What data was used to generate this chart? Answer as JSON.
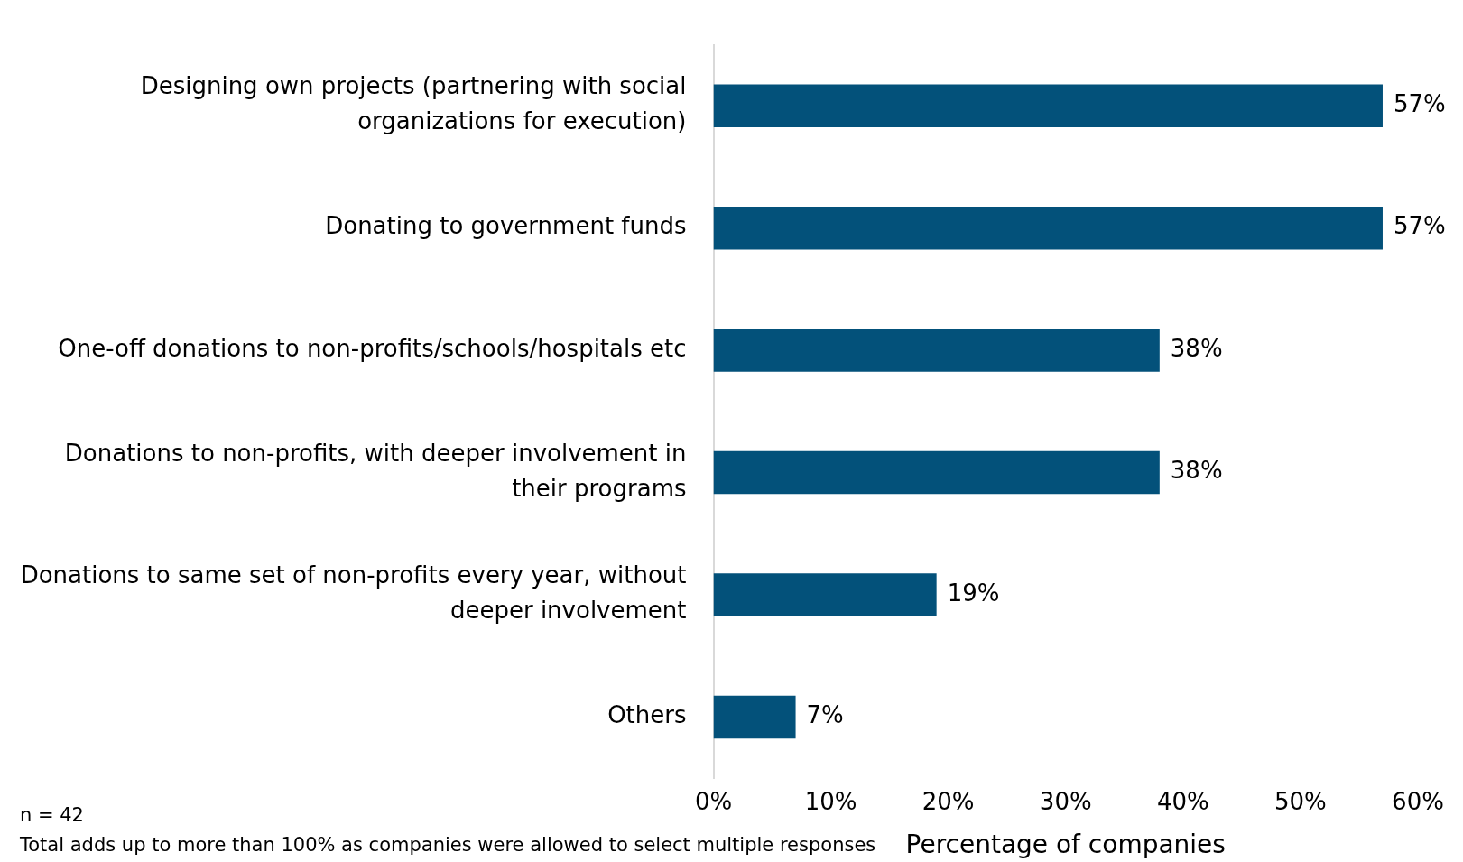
{
  "chart_data": {
    "type": "bar",
    "orientation": "horizontal",
    "xlabel": "Percentage of companies",
    "categories": [
      "Designing own projects (partnering with social organizations for execution)",
      "Donating to government funds",
      "One-off donations to non-profits/schools/hospitals etc",
      "Donations to non-profits, with deeper involvement in their programs",
      "Donations to same set of non-profits every year, without deeper involvement",
      "Others"
    ],
    "values": [
      57,
      57,
      38,
      38,
      19,
      7
    ],
    "value_labels": [
      "57%",
      "57%",
      "38%",
      "38%",
      "19%",
      "7%"
    ],
    "color": "#03517a",
    "xlim": [
      0,
      60
    ],
    "xticks": [
      {
        "value": 0,
        "label": "0%"
      },
      {
        "value": 10,
        "label": "10%"
      },
      {
        "value": 20,
        "label": "20%"
      },
      {
        "value": 30,
        "label": "30%"
      },
      {
        "value": 40,
        "label": "40%"
      },
      {
        "value": 50,
        "label": "50%"
      },
      {
        "value": 60,
        "label": "60%"
      }
    ],
    "grid": false,
    "legend": false,
    "annotations": [
      "n = 42",
      "Total adds up to more than 100% as companies were allowed to select multiple responses"
    ]
  }
}
